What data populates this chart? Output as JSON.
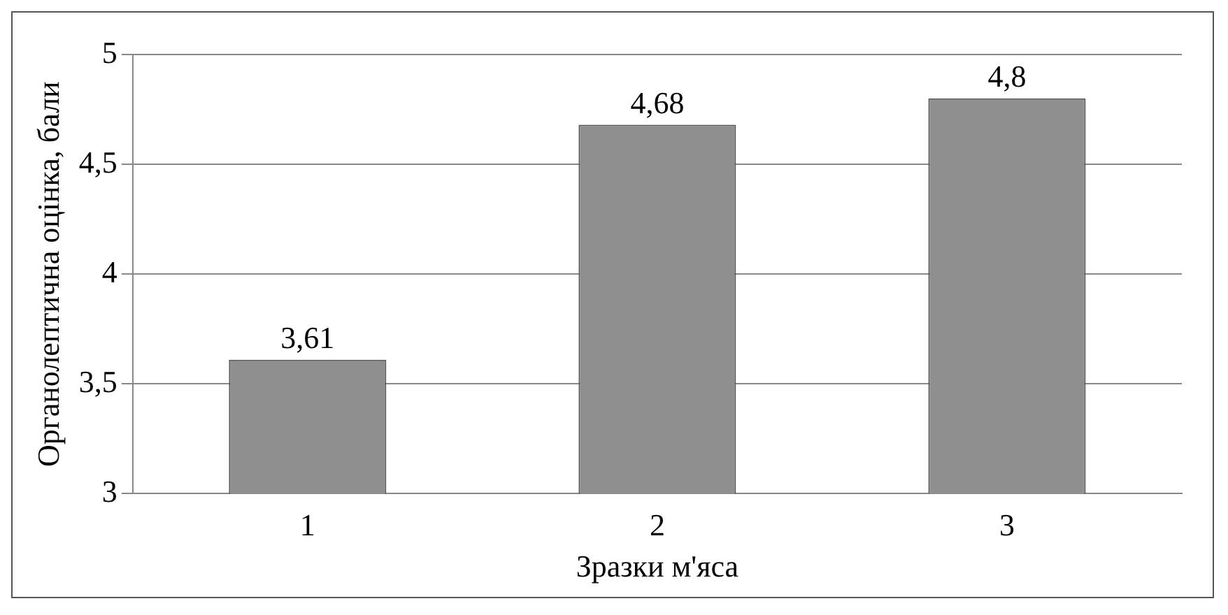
{
  "chart_data": {
    "type": "bar",
    "xlabel": "Зразки м'яса",
    "ylabel": "Органолептична оцінка, бали",
    "categories": [
      "1",
      "2",
      "3"
    ],
    "values": [
      3.61,
      4.68,
      4.8
    ],
    "value_labels": [
      "3,61",
      "4,68",
      "4,8"
    ],
    "color": "#8f8f8f",
    "ylim": [
      3,
      5
    ],
    "yticks": [
      3,
      {
        "value": 3.5,
        "label": "3,5"
      },
      4,
      {
        "value": 4.5,
        "label": "4,5"
      },
      5
    ],
    "grid": "y",
    "legend": false
  }
}
